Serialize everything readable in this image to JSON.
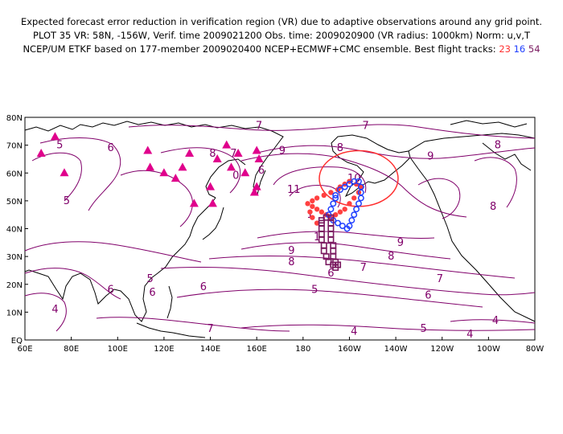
{
  "header": {
    "line1": "Expected forecast error reduction in verification region (VR) due to adaptive observations around any grid point.",
    "line2": "PLOT 35 VR: 58N, -156W, Verif. time 2009021200 Obs. time: 2009020900 (VR radius: 1000km) Norm: u,v,T",
    "line3_prefix": "NCEP/UM ETKF based on 177-member 2009020400 NCEP+ECMWF+CMC ensemble. Best flight tracks:",
    "track_a": "23",
    "track_b": "16",
    "track_c": "54"
  },
  "axes": {
    "lat_labels": [
      "80N",
      "70N",
      "60N",
      "50N",
      "40N",
      "30N",
      "20N",
      "10N",
      "EQ"
    ],
    "lon_labels": [
      "60E",
      "80E",
      "100E",
      "120E",
      "140E",
      "160E",
      "180",
      "160W",
      "140W",
      "120W",
      "100W",
      "80W"
    ],
    "lat_values": [
      80,
      70,
      60,
      50,
      40,
      30,
      20,
      10,
      0
    ],
    "lon_values": [
      60,
      80,
      100,
      120,
      140,
      160,
      180,
      200,
      220,
      240,
      260,
      280
    ]
  },
  "contour_labels": [
    {
      "text": "5",
      "lon": 75,
      "lat": 70
    },
    {
      "text": "6",
      "lon": 97,
      "lat": 69
    },
    {
      "text": "5",
      "lon": 78,
      "lat": 50
    },
    {
      "text": "4",
      "lon": 73,
      "lat": 11
    },
    {
      "text": "6",
      "lon": 97,
      "lat": 18
    },
    {
      "text": "5",
      "lon": 114,
      "lat": 22
    },
    {
      "text": "6",
      "lon": 115,
      "lat": 17
    },
    {
      "text": "6",
      "lon": 137,
      "lat": 19
    },
    {
      "text": "7",
      "lon": 140,
      "lat": 4
    },
    {
      "text": "8",
      "lon": 141,
      "lat": 67
    },
    {
      "text": "7",
      "lon": 150,
      "lat": 67
    },
    {
      "text": "0",
      "lon": 151,
      "lat": 59
    },
    {
      "text": "7",
      "lon": 161,
      "lat": 77
    },
    {
      "text": "7",
      "lon": 207,
      "lat": 77
    },
    {
      "text": "9",
      "lon": 171,
      "lat": 68
    },
    {
      "text": "8",
      "lon": 196,
      "lat": 69
    },
    {
      "text": "9",
      "lon": 235,
      "lat": 66
    },
    {
      "text": "8",
      "lon": 264,
      "lat": 70
    },
    {
      "text": "6",
      "lon": 162,
      "lat": 61
    },
    {
      "text": "10",
      "lon": 202,
      "lat": 58
    },
    {
      "text": "11",
      "lon": 176,
      "lat": 54
    },
    {
      "text": "1",
      "lon": 183,
      "lat": 45
    },
    {
      "text": "1",
      "lon": 186,
      "lat": 37
    },
    {
      "text": "9",
      "lon": 175,
      "lat": 32
    },
    {
      "text": "8",
      "lon": 175,
      "lat": 28
    },
    {
      "text": "9",
      "lon": 222,
      "lat": 35
    },
    {
      "text": "8",
      "lon": 218,
      "lat": 30
    },
    {
      "text": "7",
      "lon": 206,
      "lat": 26
    },
    {
      "text": "6",
      "lon": 192,
      "lat": 24
    },
    {
      "text": "7",
      "lon": 239,
      "lat": 22
    },
    {
      "text": "6",
      "lon": 234,
      "lat": 16
    },
    {
      "text": "5",
      "lon": 185,
      "lat": 18
    },
    {
      "text": "8",
      "lon": 262,
      "lat": 48
    },
    {
      "text": "4",
      "lon": 263,
      "lat": 7
    },
    {
      "text": "5",
      "lon": 232,
      "lat": 4
    },
    {
      "text": "4",
      "lon": 252,
      "lat": 2
    },
    {
      "text": "4",
      "lon": 202,
      "lat": 3
    }
  ],
  "verification_region": {
    "center_lon": 204,
    "center_lat": 58,
    "radius_lon": 17,
    "radius_lat": 10
  },
  "tracks": {
    "track_23": [
      [
        195,
        54
      ],
      [
        192,
        53
      ],
      [
        189,
        52
      ],
      [
        186,
        51
      ],
      [
        184,
        50
      ],
      [
        182,
        49
      ],
      [
        184,
        48
      ],
      [
        186,
        47
      ],
      [
        188,
        46
      ],
      [
        190,
        45
      ],
      [
        192,
        44
      ],
      [
        194,
        45
      ],
      [
        196,
        46
      ],
      [
        198,
        47
      ],
      [
        200,
        49
      ],
      [
        202,
        51
      ],
      [
        204,
        53
      ],
      [
        205,
        55
      ],
      [
        203,
        56
      ],
      [
        200,
        57
      ],
      [
        198,
        56
      ],
      [
        196,
        55
      ],
      [
        183,
        46
      ],
      [
        184,
        44
      ],
      [
        186,
        42
      ]
    ],
    "track_16": [
      [
        194,
        52
      ],
      [
        196,
        54
      ],
      [
        198,
        55
      ],
      [
        200,
        56
      ],
      [
        202,
        57
      ],
      [
        204,
        57
      ],
      [
        205,
        55
      ],
      [
        205,
        53
      ],
      [
        205,
        51
      ],
      [
        204,
        49
      ],
      [
        203,
        47
      ],
      [
        202,
        45
      ],
      [
        201,
        43
      ],
      [
        200,
        41
      ],
      [
        199,
        40
      ],
      [
        197,
        41
      ],
      [
        195,
        42
      ],
      [
        193,
        43
      ],
      [
        191,
        45
      ],
      [
        192,
        47
      ],
      [
        193,
        49
      ],
      [
        194,
        51
      ]
    ],
    "track_54": [
      [
        188,
        43
      ],
      [
        190,
        44
      ],
      [
        192,
        44
      ],
      [
        192,
        42
      ],
      [
        192,
        40
      ],
      [
        192,
        38
      ],
      [
        192,
        36
      ],
      [
        193,
        34
      ],
      [
        193,
        32
      ],
      [
        193,
        30
      ],
      [
        194,
        28
      ],
      [
        195,
        27
      ],
      [
        194,
        26
      ],
      [
        193,
        27
      ],
      [
        191,
        28
      ],
      [
        190,
        30
      ],
      [
        189,
        32
      ],
      [
        189,
        34
      ],
      [
        188,
        36
      ],
      [
        188,
        38
      ],
      [
        188,
        40
      ],
      [
        188,
        42
      ]
    ]
  },
  "triangles": [
    [
      67,
      67
    ],
    [
      73,
      73
    ],
    [
      77,
      60
    ],
    [
      113,
      68
    ],
    [
      114,
      62
    ],
    [
      120,
      60
    ],
    [
      125,
      58
    ],
    [
      128,
      62
    ],
    [
      131,
      67
    ],
    [
      133,
      49
    ],
    [
      140,
      55
    ],
    [
      141,
      49
    ],
    [
      143,
      65
    ],
    [
      147,
      70
    ],
    [
      152,
      67
    ],
    [
      149,
      62
    ],
    [
      155,
      60
    ],
    [
      160,
      68
    ],
    [
      161,
      65
    ],
    [
      160,
      55
    ],
    [
      159,
      53
    ]
  ],
  "colors": {
    "contour": "#80006a",
    "coast": "#000000",
    "track_23": "#ff4040",
    "track_16": "#2040ff",
    "track_54": "#7a1a60",
    "triangle": "#e0008c",
    "vr_circle": "#ff3030"
  }
}
